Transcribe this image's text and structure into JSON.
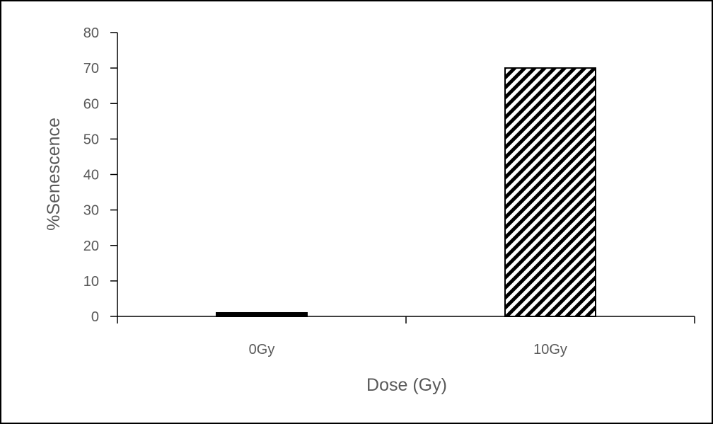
{
  "chart_data": {
    "type": "bar",
    "title": "",
    "xlabel": "Dose (Gy)",
    "ylabel": "%Senescence",
    "categories": [
      "0Gy",
      "10Gy"
    ],
    "series": [
      {
        "values": [
          1,
          70
        ],
        "fills": [
          "solid-black",
          "diagonal-stripes"
        ]
      }
    ],
    "ylim": [
      0,
      80
    ],
    "yticks": [
      0,
      10,
      20,
      30,
      40,
      50,
      60,
      70,
      80
    ],
    "grid": false,
    "legend": "none",
    "colors": {
      "bar_stroke": "#000000",
      "axis_line": "#000000",
      "text": "#595959",
      "frame": "#000000"
    }
  }
}
